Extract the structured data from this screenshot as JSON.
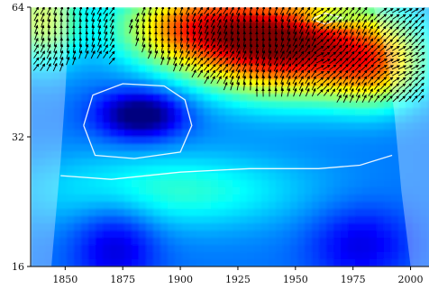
{
  "chart_data": {
    "type": "heatmap",
    "title": "",
    "xlabel": "",
    "ylabel": "",
    "x_ticks": [
      "1850",
      "1875",
      "1900",
      "1925",
      "1950",
      "1975",
      "2000"
    ],
    "x_tick_values": [
      1850,
      1875,
      1900,
      1925,
      1950,
      1975,
      2000
    ],
    "y_ticks": [
      "16",
      "32",
      "64"
    ],
    "y_tick_values": [
      16,
      32,
      64
    ],
    "xlim": [
      1835,
      2008
    ],
    "ylim": [
      16,
      64
    ],
    "y_scale": "log2",
    "colormap": "jet",
    "colormap_stops": [
      "#00007f",
      "#0000ff",
      "#007fff",
      "#00ffff",
      "#7fff7f",
      "#ffff00",
      "#ff7f00",
      "#ff0000",
      "#7f0000"
    ],
    "cone_of_influence_color": "#ffffff",
    "significance_contour_color": "#ffffff",
    "phase_arrow_color": "#000000",
    "power_regions": [
      {
        "name": "high-power-band",
        "x_range": [
          1870,
          2005
        ],
        "y_range": [
          34,
          64
        ],
        "level": 0.85
      },
      {
        "name": "upper-left-moderate",
        "x_range": [
          1835,
          1870
        ],
        "y_range": [
          44,
          64
        ],
        "level": 0.6
      },
      {
        "name": "low-power-pocket",
        "x_range": [
          1860,
          1905
        ],
        "y_range": [
          28,
          42
        ],
        "level": 0.25
      },
      {
        "name": "low-power-base",
        "x_range": [
          1835,
          2008
        ],
        "y_range": [
          16,
          28
        ],
        "level": 0.15
      }
    ]
  }
}
